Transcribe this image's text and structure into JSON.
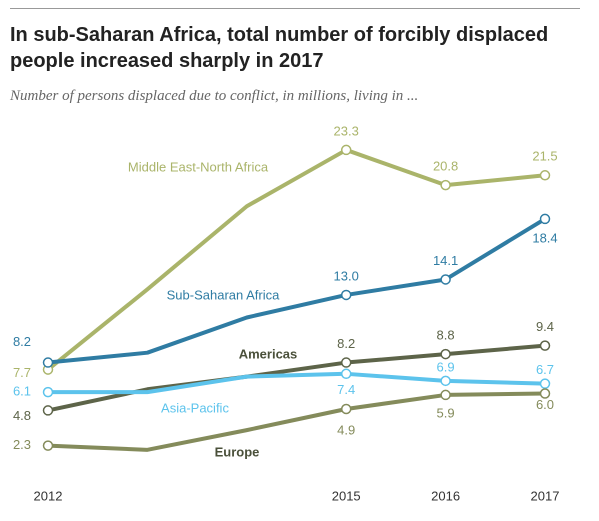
{
  "chart_data": {
    "type": "line",
    "title": "In sub-Saharan Africa, total number of forcibly displaced people increased sharply in 2017",
    "subtitle": "Number of persons displaced due to conflict, in millions, living in ...",
    "x": [
      2012,
      2013,
      2014,
      2015,
      2016,
      2017
    ],
    "xlim": [
      2012,
      2017
    ],
    "xticks": [
      2012,
      2015,
      2016,
      2017
    ],
    "ylim": [
      0,
      25
    ],
    "series": [
      {
        "name": "Middle East-North Africa",
        "color": "#aab46a",
        "values": [
          7.7,
          13.4,
          19.3,
          23.3,
          20.8,
          21.5
        ],
        "value_labels": [
          "7.7",
          null,
          null,
          "23.3",
          "20.8",
          "21.5"
        ]
      },
      {
        "name": "Sub-Saharan Africa",
        "color": "#2f7ca3",
        "values": [
          8.2,
          8.9,
          11.4,
          13.0,
          14.1,
          18.4
        ],
        "value_labels": [
          "8.2",
          null,
          null,
          "13.0",
          "14.1",
          "18.4"
        ]
      },
      {
        "name": "Americas",
        "color": "#5d6449",
        "values": [
          4.8,
          6.3,
          7.2,
          8.2,
          8.8,
          9.4
        ],
        "value_labels": [
          "4.8",
          null,
          null,
          "8.2",
          "8.8",
          "9.4"
        ]
      },
      {
        "name": "Asia-Pacific",
        "color": "#5cc3ec",
        "values": [
          6.1,
          6.1,
          7.2,
          7.4,
          6.9,
          6.7
        ],
        "value_labels": [
          "6.1",
          null,
          null,
          "7.4",
          "6.9",
          "6.7"
        ]
      },
      {
        "name": "Europe",
        "color": "#848b5b",
        "values": [
          2.3,
          2.0,
          3.4,
          4.9,
          5.9,
          6.0
        ],
        "value_labels": [
          "2.3",
          null,
          null,
          "4.9",
          "5.9",
          "6.0"
        ]
      }
    ]
  }
}
